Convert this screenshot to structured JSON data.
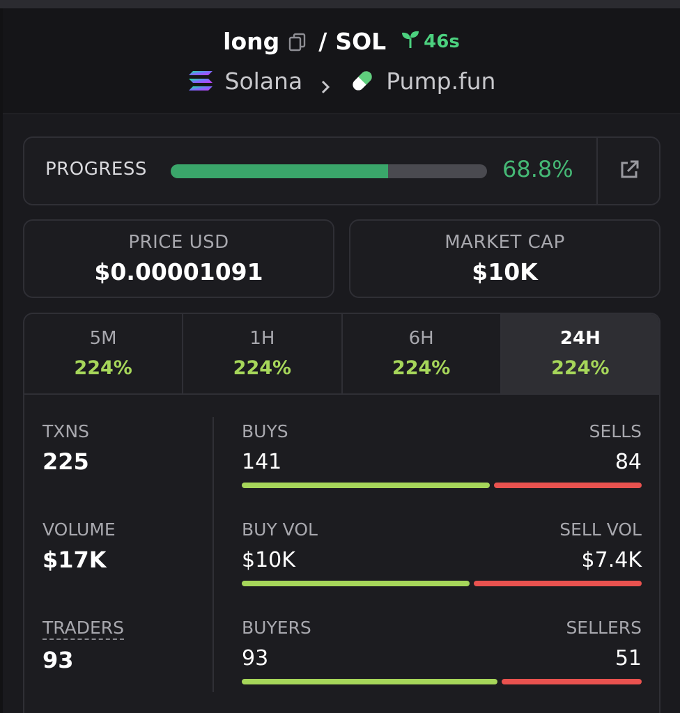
{
  "header": {
    "token": "long",
    "separator": "/",
    "quote": "SOL",
    "age": "46s",
    "chain": "Solana",
    "dex": "Pump.fun"
  },
  "progress": {
    "label": "PROGRESS",
    "value_text": "68.8%",
    "value": 0.688
  },
  "price": {
    "label": "PRICE USD",
    "value": "$0.00001091"
  },
  "market_cap": {
    "label": "MARKET CAP",
    "value": "$10K"
  },
  "tabs": [
    {
      "label": "5M",
      "value": "224%"
    },
    {
      "label": "1H",
      "value": "224%"
    },
    {
      "label": "6H",
      "value": "224%"
    },
    {
      "label": "24H",
      "value": "224%",
      "active": true
    }
  ],
  "metrics": {
    "txns": {
      "label": "TXNS",
      "value": "225"
    },
    "volume": {
      "label": "VOLUME",
      "value": "$17K"
    },
    "traders": {
      "label": "TRADERS",
      "value": "93"
    }
  },
  "splits": {
    "txns": {
      "left_label": "BUYS",
      "right_label": "SELLS",
      "left_value": "141",
      "right_value": "84",
      "left_share": 0.627
    },
    "volume": {
      "left_label": "BUY VOL",
      "right_label": "SELL VOL",
      "left_value": "$10K",
      "right_value": "$7.4K",
      "left_share": 0.575
    },
    "traders": {
      "left_label": "BUYERS",
      "right_label": "SELLERS",
      "left_value": "93",
      "right_value": "51",
      "left_share": 0.646
    }
  },
  "colors": {
    "accent_green": "#45b875",
    "positive": "#a6d65a",
    "negative": "#e9524f",
    "background": "#1a1a1e"
  },
  "icons": {
    "copy": "copy-icon",
    "age": "sprout-icon",
    "chain": "solana-logo-icon",
    "chevron": "chevron-right-icon",
    "dex": "pill-icon",
    "external": "external-link-icon"
  }
}
